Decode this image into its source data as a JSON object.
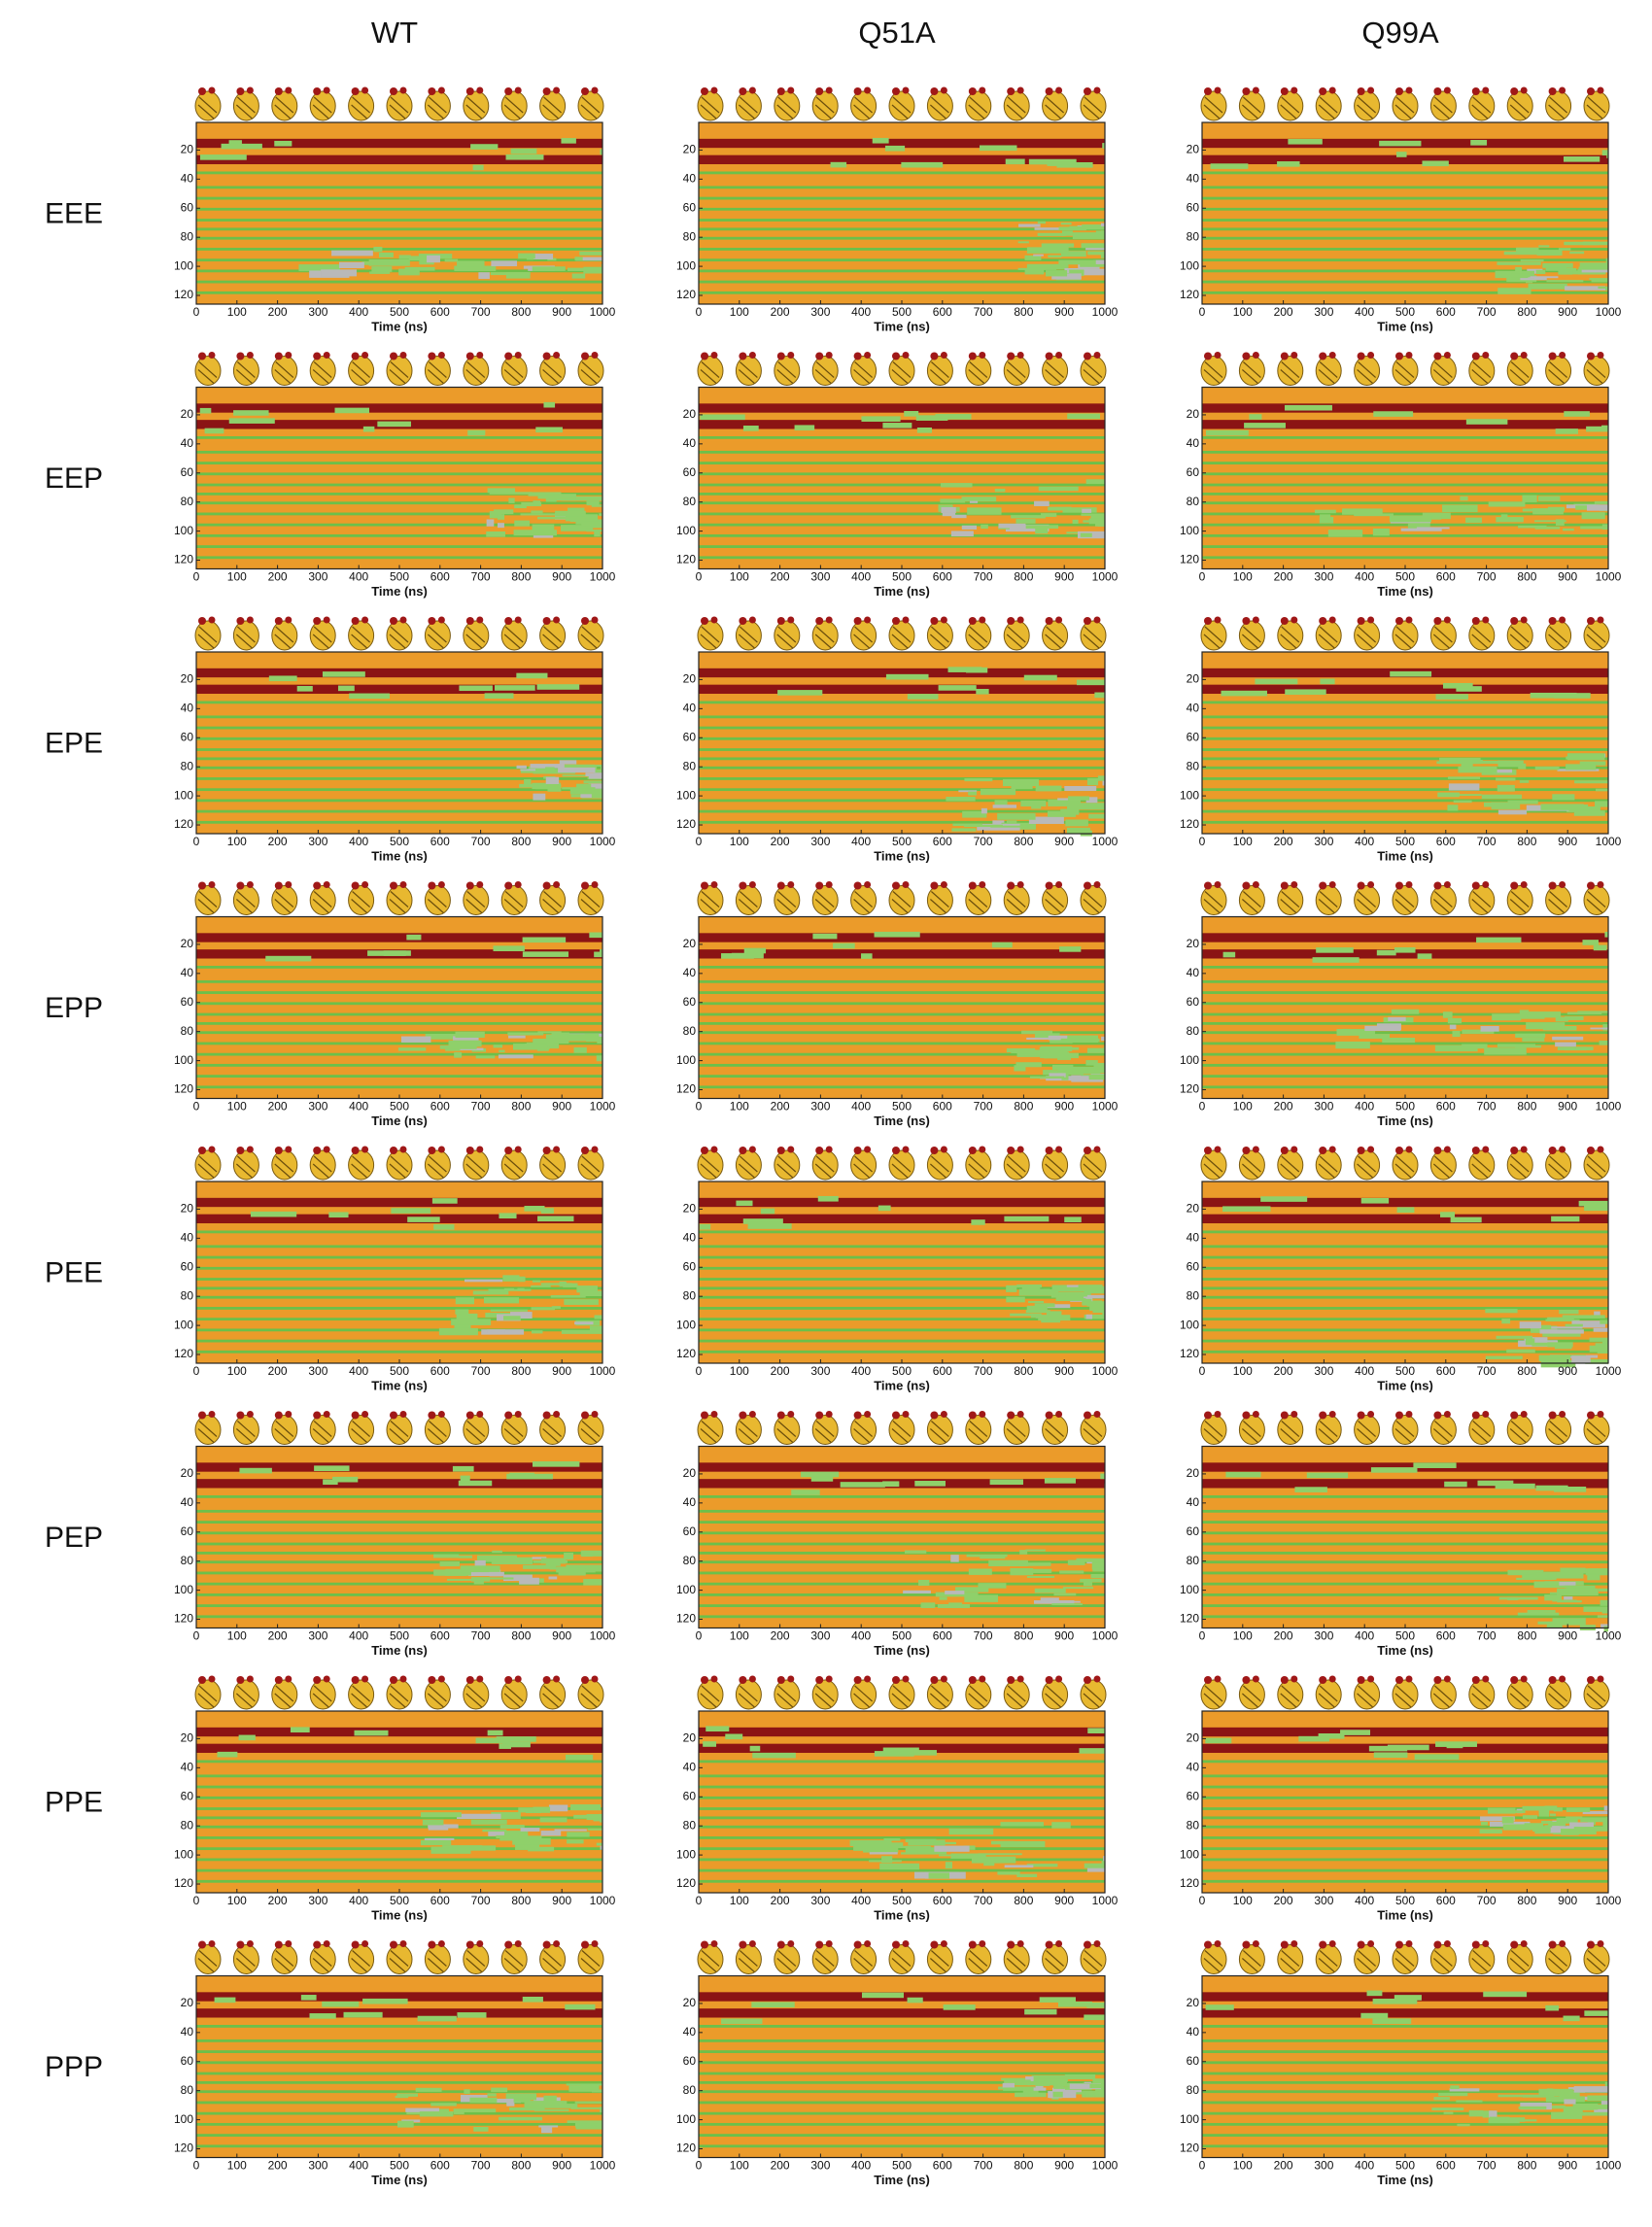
{
  "chart_data": {
    "type": "heatmap",
    "columns": [
      "WT",
      "Q51A",
      "Q99A"
    ],
    "rows": [
      "EEE",
      "EEP",
      "EPE",
      "EPP",
      "PEE",
      "PEP",
      "PPE",
      "PPP"
    ],
    "x_label": "Time (ns)",
    "xlim": [
      0,
      1000
    ],
    "xticks": [
      0,
      100,
      200,
      300,
      400,
      500,
      600,
      700,
      800,
      900,
      1000
    ],
    "ylim": [
      126,
      1
    ],
    "yticks": [
      20,
      40,
      60,
      80,
      100,
      120
    ]
  }
}
